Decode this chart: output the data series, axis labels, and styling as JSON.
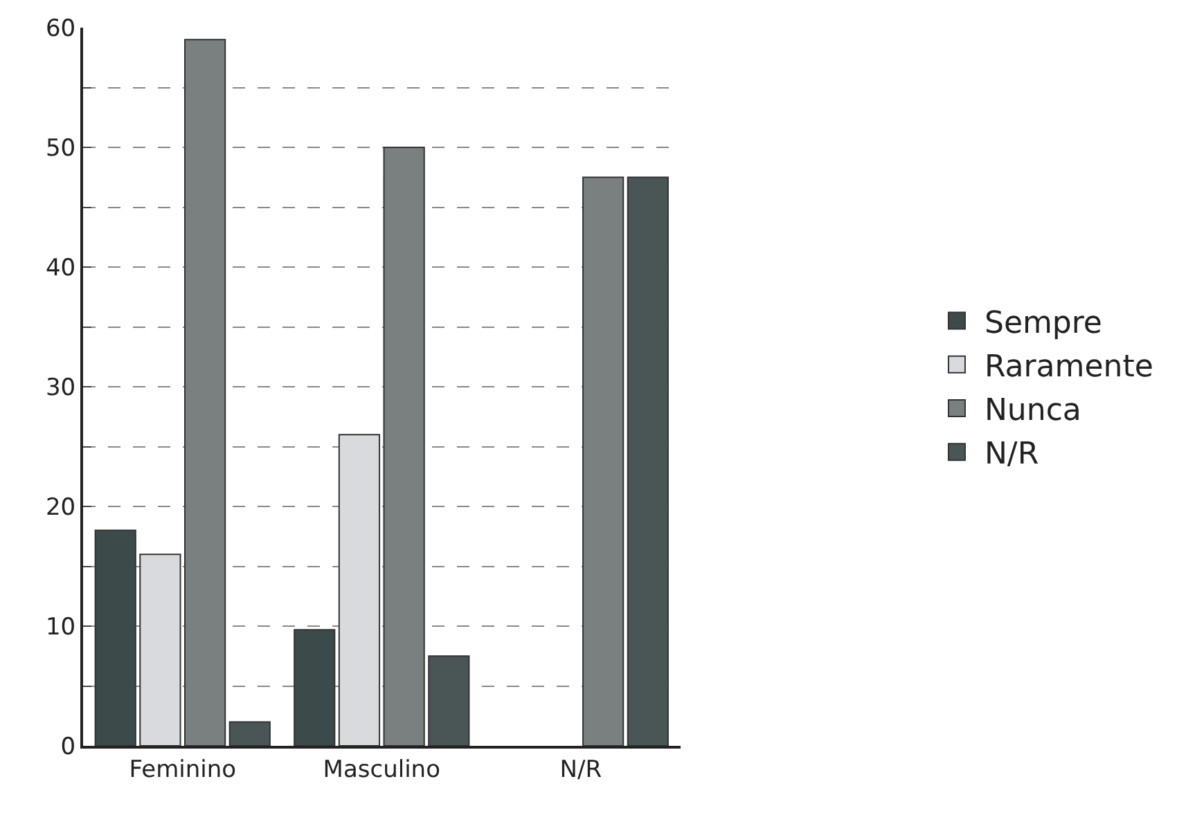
{
  "chart_data": {
    "type": "bar",
    "categories": [
      "Feminino",
      "Masculino",
      "N/R"
    ],
    "series": [
      {
        "name": "Sempre",
        "color": "#3d4a4a",
        "values": [
          18,
          9.7,
          null
        ]
      },
      {
        "name": "Raramente",
        "color": "#d8dade",
        "values": [
          16,
          26,
          null
        ]
      },
      {
        "name": "Nunca",
        "color": "#7a7f80",
        "values": [
          59,
          50,
          47.5
        ]
      },
      {
        "name": "N/R",
        "color": "#4a5556",
        "values": [
          2,
          7.5,
          47.5
        ]
      }
    ],
    "ylim": [
      0,
      60
    ],
    "yticks": [
      0,
      {
        "value": 5,
        "label": null
      },
      10,
      {
        "value": 15,
        "label": null
      },
      20,
      {
        "value": 25,
        "label": null
      },
      30,
      {
        "value": 35,
        "label": null
      },
      40,
      {
        "value": 45,
        "label": null
      },
      50,
      {
        "value": 55,
        "label": null
      },
      60
    ],
    "grid": "y",
    "legend": "right"
  }
}
